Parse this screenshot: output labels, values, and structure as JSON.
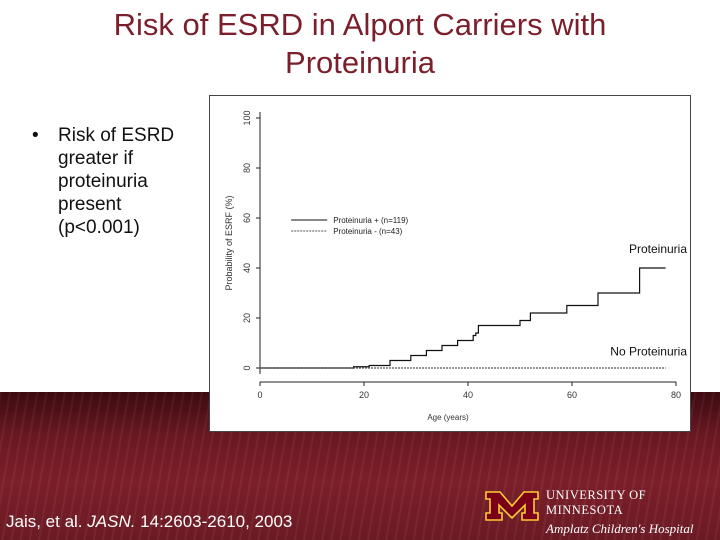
{
  "slide": {
    "title_line1": "Risk of ESRD in Alport Carriers with",
    "title_line2": "Proteinuria",
    "bullet_marker": "•",
    "bullet_text": "Risk of ESRD greater if proteinuria present (p<0.001)",
    "citation_prefix": "Jais, et al. ",
    "citation_journal": "JASN.",
    "citation_suffix": " 14:2603-2610, 2003",
    "logo_line1": "UNIVERSITY OF MINNESOTA",
    "logo_line2": "Amplatz Children's Hospital",
    "colors": {
      "title": "#7a1f2b",
      "footer": "#7b1f2a",
      "maroon": "#7a0019",
      "gold": "#ffcc33"
    }
  },
  "chart_data": {
    "type": "line",
    "step": true,
    "xlabel": "Age (years)",
    "ylabel": "Probability of ESRF (%)",
    "xlim": [
      0,
      80
    ],
    "ylim": [
      0,
      100
    ],
    "xticks": [
      0,
      20,
      40,
      60,
      80
    ],
    "yticks": [
      0,
      20,
      40,
      60,
      80,
      100
    ],
    "legend": {
      "placement": "upper-left",
      "entries": [
        "Proteinuria + (n=119)",
        "Proteinuria - (n=43)"
      ]
    },
    "annotations": [
      {
        "text": "Proteinuria",
        "series": "Proteinuria + (n=119)"
      },
      {
        "text": "No Proteinuria",
        "series": "Proteinuria - (n=43)"
      }
    ],
    "series": [
      {
        "name": "Proteinuria + (n=119)",
        "x": [
          0,
          18,
          21,
          25,
          29,
          32,
          35,
          38,
          41,
          41.5,
          42,
          50,
          52,
          59,
          65,
          73,
          78
        ],
        "y": [
          0,
          0.5,
          1,
          3,
          5,
          7,
          9,
          11,
          13,
          14,
          17,
          19,
          22,
          25,
          30,
          40,
          40
        ]
      },
      {
        "name": "Proteinuria - (n=43)",
        "x": [
          0,
          20,
          78
        ],
        "y": [
          0,
          0,
          0
        ]
      }
    ]
  }
}
